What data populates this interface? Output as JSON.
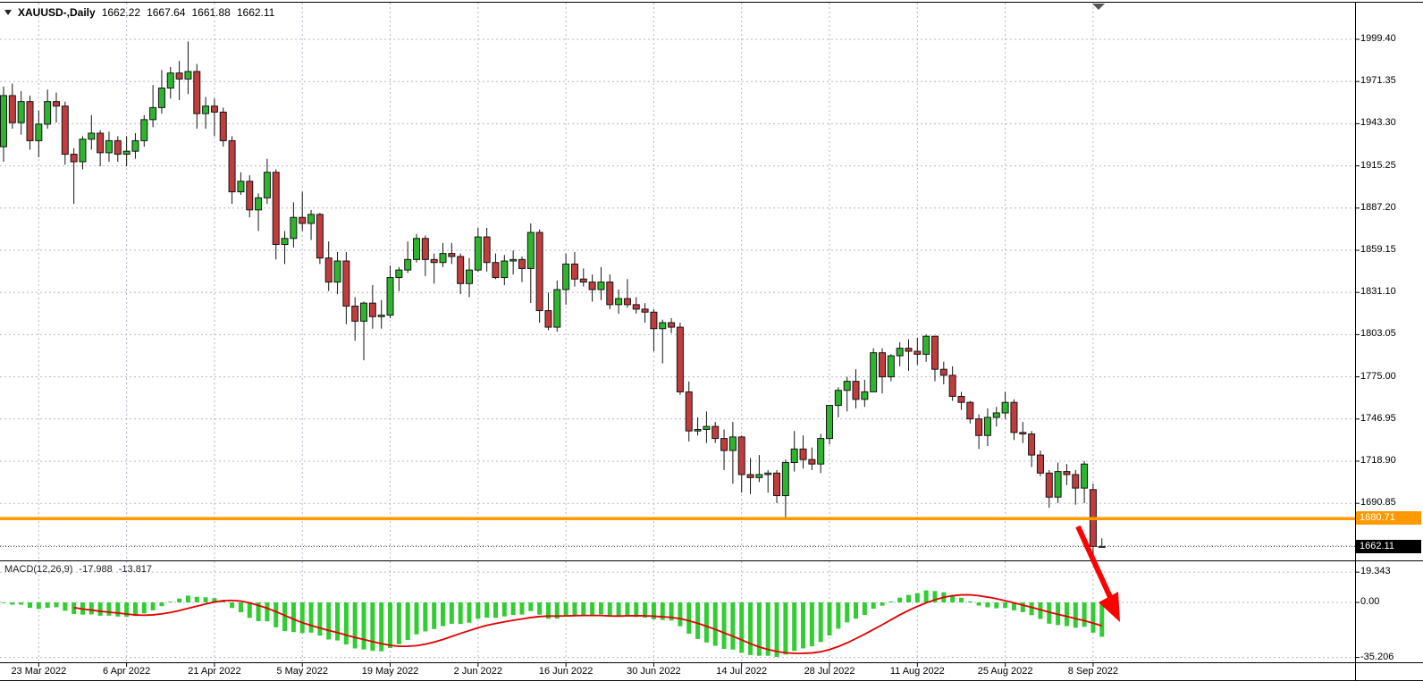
{
  "quote_bar": {
    "symbol": "XAUUSD-,Daily",
    "open": "1662.22",
    "high": "1667.64",
    "low": "1661.88",
    "close": "1662.11"
  },
  "overlays": {
    "orange_level": "1680.71",
    "current_price": "1662.11"
  },
  "macd_panel": {
    "title": "MACD(12,26,9)",
    "main_value": "-17.988",
    "signal_value": "-13.817",
    "axis": {
      "max": "19.343",
      "zero": "0.00",
      "min": "-35.206"
    }
  },
  "colors": {
    "up": "#2EB52E",
    "down": "#C13C3C",
    "outline": "#151515",
    "grid": "#b6b6cc",
    "macd_hist": "#32CD32",
    "macd_signal": "#E00000",
    "orange_line": "#FF9900",
    "current_line": "#555555",
    "arrow": "#FF0000",
    "shift_marker": "#555555"
  },
  "chart_data": {
    "type": "candlestick",
    "symbol": "XAUUSD",
    "timeframe": "Daily",
    "x_tick_labels": [
      "23 Mar 2022",
      "6 Apr 2022",
      "21 Apr 2022",
      "5 May 2022",
      "19 May 2022",
      "2 Jun 2022",
      "16 Jun 2022",
      "30 Jun 2022",
      "14 Jul 2022",
      "28 Jul 2022",
      "11 Aug 2022",
      "25 Aug 2022",
      "8 Sep 2022"
    ],
    "y_tick_labels": [
      "1999.40",
      "1971.35",
      "1943.30",
      "1915.25",
      "1887.20",
      "1859.15",
      "1831.10",
      "1803.05",
      "1775.00",
      "1746.95",
      "1718.90",
      "1690.85"
    ],
    "y_ticks": [
      1999.4,
      1971.35,
      1943.3,
      1915.25,
      1887.2,
      1859.15,
      1831.1,
      1803.05,
      1775.0,
      1746.95,
      1718.9,
      1690.85
    ],
    "support_line": 1680.71,
    "last_price": 1662.11,
    "ohlc": [
      [
        1928,
        1968,
        1918,
        1962
      ],
      [
        1962,
        1970,
        1940,
        1944
      ],
      [
        1944,
        1965,
        1936,
        1958
      ],
      [
        1958,
        1962,
        1926,
        1932
      ],
      [
        1932,
        1952,
        1921,
        1943
      ],
      [
        1943,
        1966,
        1940,
        1958
      ],
      [
        1958,
        1964,
        1944,
        1955
      ],
      [
        1955,
        1958,
        1916,
        1923
      ],
      [
        1923,
        1927,
        1890,
        1918
      ],
      [
        1918,
        1935,
        1913,
        1933
      ],
      [
        1933,
        1949,
        1926,
        1937
      ],
      [
        1937,
        1939,
        1915,
        1924
      ],
      [
        1924,
        1938,
        1918,
        1932
      ],
      [
        1932,
        1935,
        1918,
        1923
      ],
      [
        1923,
        1935,
        1915,
        1925
      ],
      [
        1925,
        1937,
        1920,
        1932
      ],
      [
        1932,
        1949,
        1928,
        1946
      ],
      [
        1946,
        1969,
        1941,
        1954
      ],
      [
        1954,
        1979,
        1950,
        1967
      ],
      [
        1967,
        1981,
        1960,
        1977
      ],
      [
        1977,
        1985,
        1959,
        1973
      ],
      [
        1973,
        1998,
        1963,
        1978
      ],
      [
        1978,
        1983,
        1940,
        1950
      ],
      [
        1950,
        1961,
        1940,
        1955
      ],
      [
        1955,
        1960,
        1935,
        1951
      ],
      [
        1951,
        1954,
        1928,
        1932
      ],
      [
        1932,
        1935,
        1890,
        1898
      ],
      [
        1898,
        1911,
        1896,
        1905
      ],
      [
        1905,
        1909,
        1881,
        1886
      ],
      [
        1886,
        1897,
        1872,
        1894
      ],
      [
        1894,
        1920,
        1890,
        1911
      ],
      [
        1911,
        1913,
        1853,
        1863
      ],
      [
        1863,
        1872,
        1850,
        1867
      ],
      [
        1867,
        1891,
        1861,
        1881
      ],
      [
        1881,
        1898,
        1872,
        1877
      ],
      [
        1877,
        1886,
        1866,
        1883
      ],
      [
        1883,
        1884,
        1850,
        1854
      ],
      [
        1854,
        1865,
        1832,
        1838
      ],
      [
        1838,
        1858,
        1830,
        1852
      ],
      [
        1852,
        1858,
        1810,
        1822
      ],
      [
        1822,
        1828,
        1799,
        1812
      ],
      [
        1812,
        1825,
        1786,
        1824
      ],
      [
        1824,
        1836,
        1807,
        1815
      ],
      [
        1815,
        1826,
        1807,
        1816
      ],
      [
        1816,
        1849,
        1814,
        1841
      ],
      [
        1841,
        1848,
        1832,
        1846
      ],
      [
        1846,
        1865,
        1844,
        1853
      ],
      [
        1853,
        1870,
        1851,
        1867
      ],
      [
        1867,
        1869,
        1842,
        1853
      ],
      [
        1853,
        1857,
        1837,
        1851
      ],
      [
        1851,
        1864,
        1848,
        1857
      ],
      [
        1857,
        1864,
        1850,
        1855
      ],
      [
        1855,
        1857,
        1830,
        1837
      ],
      [
        1837,
        1854,
        1828,
        1846
      ],
      [
        1846,
        1874,
        1845,
        1868
      ],
      [
        1868,
        1874,
        1845,
        1851
      ],
      [
        1851,
        1857,
        1840,
        1841
      ],
      [
        1841,
        1856,
        1836,
        1852
      ],
      [
        1852,
        1859,
        1843,
        1853
      ],
      [
        1853,
        1855,
        1838,
        1847
      ],
      [
        1847,
        1877,
        1824,
        1871
      ],
      [
        1871,
        1873,
        1811,
        1819
      ],
      [
        1819,
        1831,
        1806,
        1808
      ],
      [
        1808,
        1839,
        1805,
        1833
      ],
      [
        1833,
        1857,
        1823,
        1850
      ],
      [
        1850,
        1858,
        1835,
        1840
      ],
      [
        1840,
        1847,
        1835,
        1838
      ],
      [
        1838,
        1843,
        1825,
        1833
      ],
      [
        1833,
        1848,
        1826,
        1838
      ],
      [
        1838,
        1843,
        1820,
        1823
      ],
      [
        1823,
        1833,
        1817,
        1827
      ],
      [
        1827,
        1840,
        1821,
        1823
      ],
      [
        1823,
        1828,
        1817,
        1820
      ],
      [
        1820,
        1824,
        1811,
        1818
      ],
      [
        1818,
        1820,
        1792,
        1807
      ],
      [
        1807,
        1813,
        1784,
        1811
      ],
      [
        1811,
        1814,
        1804,
        1808
      ],
      [
        1808,
        1811,
        1763,
        1765
      ],
      [
        1765,
        1772,
        1732,
        1739
      ],
      [
        1739,
        1748,
        1736,
        1740
      ],
      [
        1740,
        1752,
        1731,
        1742
      ],
      [
        1742,
        1745,
        1731,
        1734
      ],
      [
        1734,
        1740,
        1713,
        1726
      ],
      [
        1726,
        1745,
        1704,
        1735
      ],
      [
        1735,
        1736,
        1698,
        1710
      ],
      [
        1710,
        1721,
        1697,
        1708
      ],
      [
        1708,
        1723,
        1705,
        1710
      ],
      [
        1710,
        1713,
        1698,
        1711
      ],
      [
        1711,
        1713,
        1691,
        1696
      ],
      [
        1696,
        1720,
        1680,
        1718
      ],
      [
        1718,
        1739,
        1712,
        1727
      ],
      [
        1727,
        1736,
        1714,
        1720
      ],
      [
        1720,
        1728,
        1713,
        1717
      ],
      [
        1717,
        1737,
        1711,
        1734
      ],
      [
        1734,
        1756,
        1730,
        1756
      ],
      [
        1756,
        1768,
        1748,
        1766
      ],
      [
        1766,
        1775,
        1752,
        1772
      ],
      [
        1772,
        1780,
        1754,
        1760
      ],
      [
        1760,
        1773,
        1755,
        1765
      ],
      [
        1765,
        1794,
        1765,
        1791
      ],
      [
        1791,
        1794,
        1764,
        1775
      ],
      [
        1775,
        1790,
        1772,
        1789
      ],
      [
        1789,
        1798,
        1782,
        1794
      ],
      [
        1794,
        1800,
        1779,
        1792
      ],
      [
        1792,
        1801,
        1783,
        1790
      ],
      [
        1790,
        1803,
        1785,
        1802
      ],
      [
        1802,
        1802,
        1772,
        1780
      ],
      [
        1780,
        1785,
        1770,
        1776
      ],
      [
        1776,
        1782,
        1759,
        1762
      ],
      [
        1762,
        1765,
        1753,
        1758
      ],
      [
        1758,
        1759,
        1744,
        1747
      ],
      [
        1747,
        1750,
        1727,
        1736
      ],
      [
        1736,
        1754,
        1729,
        1748
      ],
      [
        1748,
        1755,
        1742,
        1751
      ],
      [
        1751,
        1765,
        1747,
        1758
      ],
      [
        1758,
        1760,
        1733,
        1738
      ],
      [
        1738,
        1745,
        1731,
        1737
      ],
      [
        1737,
        1739,
        1715,
        1723
      ],
      [
        1723,
        1726,
        1709,
        1711
      ],
      [
        1711,
        1713,
        1688,
        1695
      ],
      [
        1695,
        1718,
        1691,
        1712
      ],
      [
        1712,
        1717,
        1703,
        1710
      ],
      [
        1710,
        1713,
        1690,
        1701
      ],
      [
        1701,
        1719,
        1691,
        1717
      ],
      [
        1700,
        1704,
        1656,
        1662.2
      ],
      [
        1662.22,
        1667.64,
        1661.88,
        1662.11
      ]
    ],
    "indicator": {
      "type": "MACD",
      "params": [
        12,
        26,
        9
      ],
      "last_main": -17.988,
      "last_signal": -13.817,
      "scale_max": 19.343,
      "scale_min": -35.206
    }
  }
}
